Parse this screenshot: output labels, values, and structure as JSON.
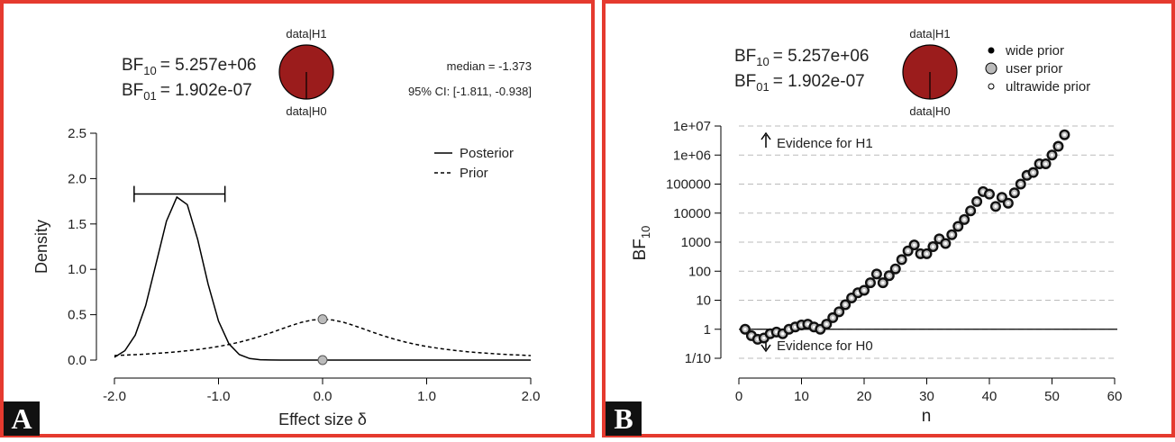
{
  "panels": [
    "A",
    "B"
  ],
  "chart_data": [
    {
      "type": "line",
      "x_label": "Effect size δ",
      "y_label": "Density",
      "bf": [
        {
          "base": "BF",
          "sub": "10",
          "rest": "= 5.257e+06",
          "value": 5257000
        },
        {
          "base": "BF",
          "sub": "01",
          "rest": "= 1.902e-07",
          "value": 1.902e-07
        }
      ],
      "pie_labels": [
        "data|H1",
        "data|H0"
      ],
      "pie_color": "#9b1c1c",
      "median_text": "median = -1.373",
      "ci_text": "95% CI: [-1.811, -0.938]",
      "ci": [
        -1.811,
        -0.938
      ],
      "ci_y": 1.83,
      "x": [
        -2,
        -1.9,
        -1.8,
        -1.7,
        -1.6,
        -1.5,
        -1.4,
        -1.3,
        -1.2,
        -1.1,
        -1,
        -0.9,
        -0.8,
        -0.7,
        -0.6,
        -0.5,
        -0.4,
        -0.3,
        -0.2,
        -0.1,
        0,
        0.1,
        0.2,
        0.3,
        0.4,
        0.5,
        0.6,
        0.7,
        0.8,
        0.9,
        1,
        1.1,
        1.2,
        1.3,
        1.4,
        1.5,
        1.6,
        1.7,
        1.8,
        1.9,
        2
      ],
      "series": [
        {
          "name": "Posterior",
          "color": "#000000",
          "dash": false,
          "values": [
            0.031,
            0.103,
            0.275,
            0.6,
            1.063,
            1.532,
            1.796,
            1.713,
            1.329,
            0.838,
            0.43,
            0.179,
            0.061,
            0.017,
            0.004,
            0.001,
            0,
            0,
            0,
            0,
            0,
            0,
            0,
            0,
            0,
            0,
            0,
            0,
            0,
            0,
            0,
            0,
            0,
            0,
            0,
            0,
            0,
            0,
            0,
            0,
            0
          ]
        },
        {
          "name": "Prior",
          "color": "#000000",
          "dash": true,
          "values": [
            0.05,
            0.055,
            0.06,
            0.066,
            0.074,
            0.082,
            0.091,
            0.103,
            0.116,
            0.132,
            0.15,
            0.172,
            0.197,
            0.227,
            0.262,
            0.3,
            0.341,
            0.381,
            0.417,
            0.441,
            0.45,
            0.441,
            0.417,
            0.381,
            0.341,
            0.3,
            0.262,
            0.227,
            0.197,
            0.172,
            0.15,
            0.132,
            0.116,
            0.103,
            0.091,
            0.082,
            0.074,
            0.066,
            0.06,
            0.055,
            0.05
          ]
        }
      ],
      "points": [
        {
          "x": 0,
          "y": 0.45
        },
        {
          "x": 0,
          "y": 0
        }
      ],
      "xlim": [
        -2,
        2
      ],
      "xticks": [
        {
          "value": -2,
          "label": "-2.0"
        },
        {
          "value": -1,
          "label": "-1.0"
        },
        {
          "value": 0,
          "label": "0.0"
        },
        {
          "value": 1,
          "label": "1.0"
        },
        {
          "value": 2,
          "label": "2.0"
        }
      ],
      "ylim": [
        0,
        2.5
      ],
      "yticks": [
        {
          "value": 0,
          "label": "0.0"
        },
        0.5,
        {
          "value": 1,
          "label": "1.0"
        },
        1.5,
        {
          "value": 2,
          "label": "2.0"
        },
        2.5
      ]
    },
    {
      "type": "scatter",
      "x_label": "n",
      "y_label": {
        "base": "BF",
        "sub": "10"
      },
      "bf": [
        {
          "base": "BF",
          "sub": "10",
          "rest": "= 5.257e+06",
          "value": 5257000
        },
        {
          "base": "BF",
          "sub": "01",
          "rest": "= 1.902e-07",
          "value": 1.902e-07
        }
      ],
      "pie_labels": [
        "data|H1",
        "data|H0"
      ],
      "pie_color": "#9b1c1c",
      "legend": [
        {
          "name": "wide prior",
          "color": "#000000",
          "size": 3
        },
        {
          "name": "user prior",
          "color": "#bbbbbb",
          "size": 6
        },
        {
          "name": "ultrawide prior",
          "color": "#ffffff",
          "size": 3
        }
      ],
      "annotations": [
        "Evidence for H1",
        "Evidence for H0"
      ],
      "log_y": true,
      "grid": true,
      "reference": 1,
      "x": [
        1,
        2,
        3,
        4,
        5,
        6,
        7,
        8,
        9,
        10,
        11,
        12,
        13,
        14,
        15,
        16,
        17,
        18,
        19,
        20,
        21,
        22,
        23,
        24,
        25,
        26,
        27,
        28,
        29,
        30,
        31,
        32,
        33,
        34,
        35,
        36,
        37,
        38,
        39,
        40,
        41,
        42,
        43,
        44,
        45,
        46,
        47,
        48,
        49,
        50,
        51,
        52
      ],
      "values": [
        1,
        0.6,
        0.45,
        0.5,
        0.7,
        0.8,
        0.7,
        1,
        1.2,
        1.4,
        1.5,
        1.2,
        1,
        1.5,
        2.5,
        4,
        7,
        12,
        18,
        22,
        40,
        80,
        40,
        70,
        120,
        250,
        500,
        800,
        400,
        400,
        700,
        1300,
        900,
        1800,
        3500,
        6000,
        12000,
        25000,
        55000,
        45000,
        17000,
        35000,
        22000,
        50000,
        100000,
        200000,
        250000,
        500000,
        500000,
        1000000,
        2000000,
        5000000
      ],
      "xlim": [
        0,
        60
      ],
      "xticks": [
        0,
        10,
        20,
        30,
        40,
        50,
        60
      ],
      "ylim": [
        0.1,
        10000000
      ],
      "yticks": [
        {
          "value": 0.1,
          "label": "1/10"
        },
        1,
        10,
        100,
        1000,
        10000,
        100000,
        {
          "value": 1000000,
          "label": "1e+06"
        },
        {
          "value": 10000000,
          "label": "1e+07"
        }
      ]
    }
  ]
}
